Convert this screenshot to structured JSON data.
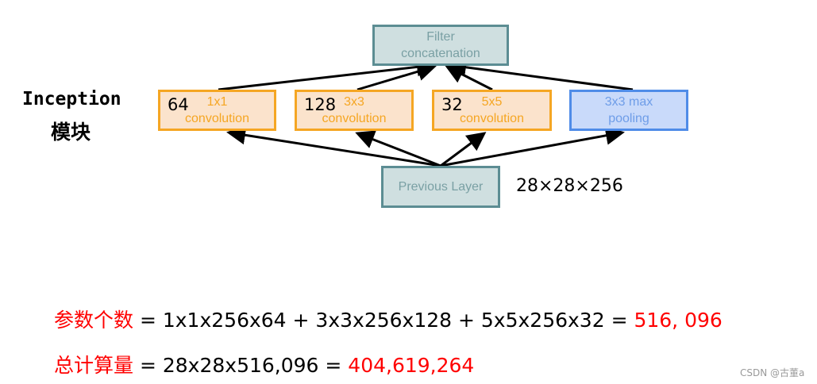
{
  "title": {
    "line1": "Inception",
    "line2": "模块"
  },
  "diagram": {
    "concat": {
      "line1": "Filter",
      "line2": "concatenation"
    },
    "branches": [
      {
        "count": "64",
        "line1": "1x1",
        "line2": "convolution"
      },
      {
        "count": "128",
        "line1": "3x3",
        "line2": "convolution"
      },
      {
        "count": "32",
        "line1": "5x5",
        "line2": "convolution"
      },
      {
        "line1": "3x3 max",
        "line2": "pooling"
      }
    ],
    "previous": "Previous Layer",
    "input_shape": "28×28×256"
  },
  "formulas": {
    "params_label": "参数个数",
    "params_expr": " = 1x1x256x64 + 3x3x256x128 + 5x5x256x32 = ",
    "params_result": "516, 096",
    "ops_label": "总计算量",
    "ops_expr": " = 28x28x516,096 = ",
    "ops_result": "404,619,264"
  },
  "watermark": "CSDN @古董a",
  "colors": {
    "orange": "#f5a623",
    "teal": "#5c8d93",
    "blue": "#4f8ce8",
    "red": "#ff0000"
  }
}
